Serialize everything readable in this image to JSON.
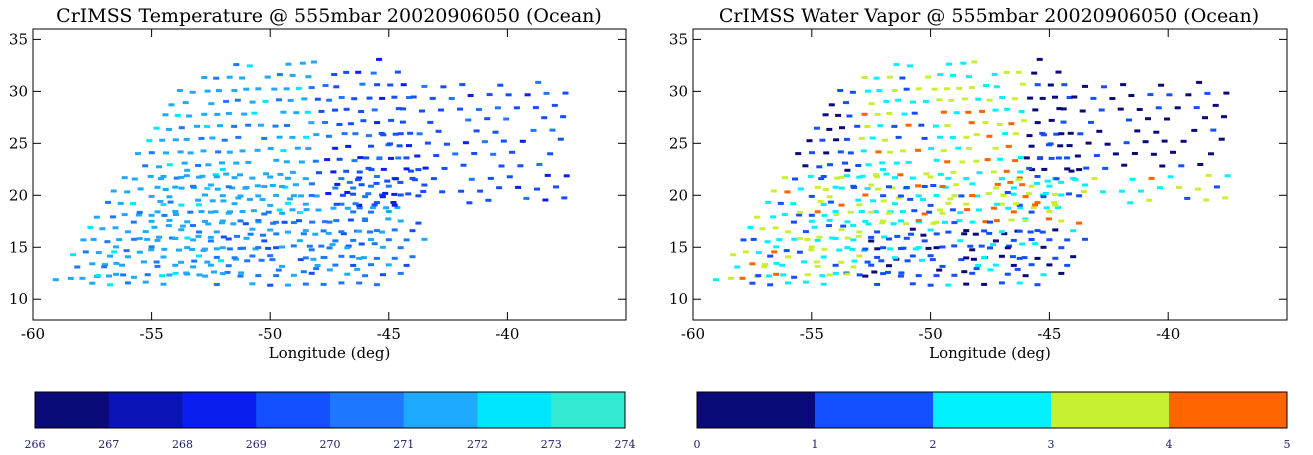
{
  "chart_data": [
    {
      "type": "scatter",
      "title": "CrIMSS Temperature @ 555mbar 20020906050 (Ocean)",
      "xlabel": "Longitude (deg)",
      "ylabel": "",
      "xlim": [
        -60,
        -35
      ],
      "ylim": [
        8,
        36
      ],
      "x_ticks": [
        "-60",
        "-55",
        "-50",
        "-45",
        "-40"
      ],
      "y_ticks": [
        "10",
        "15",
        "20",
        "25",
        "30",
        "35"
      ],
      "colorbar": {
        "ticks": [
          "266",
          "267",
          "268",
          "269",
          "270",
          "271",
          "272",
          "273",
          "274"
        ],
        "colors": [
          "#0a0a78",
          "#0a14b4",
          "#0a1ef0",
          "#1450ff",
          "#1e78ff",
          "#1eaaff",
          "#00e6ff",
          "#32ebd2"
        ]
      },
      "dominant_color_index": 5,
      "secondary_color_index": 3,
      "grid": false
    },
    {
      "type": "scatter",
      "title": "CrIMSS Water Vapor @ 555mbar 20020906050 (Ocean)",
      "xlabel": "Longitude (deg)",
      "ylabel": "",
      "xlim": [
        -60,
        -35
      ],
      "ylim": [
        8,
        36
      ],
      "x_ticks": [
        "-60",
        "-55",
        "-50",
        "-45",
        "-40"
      ],
      "y_ticks": [
        "10",
        "15",
        "20",
        "25",
        "30",
        "35"
      ],
      "colorbar": {
        "ticks": [
          "0",
          "1",
          "2",
          "3",
          "4",
          "5"
        ],
        "colors": [
          "#0a0a78",
          "#1450ff",
          "#00f0ff",
          "#c8f032",
          "#ff6400"
        ]
      },
      "dominant_color_index": 1,
      "secondary_color_index": 2,
      "grid": false
    }
  ]
}
